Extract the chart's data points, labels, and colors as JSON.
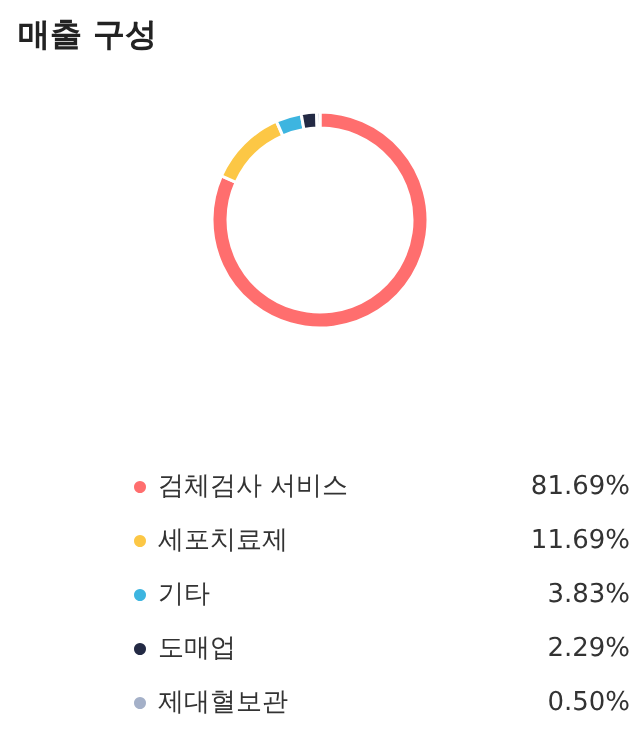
{
  "chart_data": {
    "type": "donut",
    "title": "매출 구성",
    "categories": [
      "검체검사 서비스",
      "세포치료제",
      "기타",
      "도매업",
      "제대혈보관"
    ],
    "values": [
      81.69,
      11.69,
      3.83,
      2.29,
      0.5
    ],
    "value_labels": [
      "81.69%",
      "11.69%",
      "3.83%",
      "2.29%",
      "0.50%"
    ],
    "colors": [
      "#ff6e6e",
      "#fcc745",
      "#3db5e0",
      "#232a44",
      "#a4b0c8"
    ],
    "legend": "bottom"
  }
}
